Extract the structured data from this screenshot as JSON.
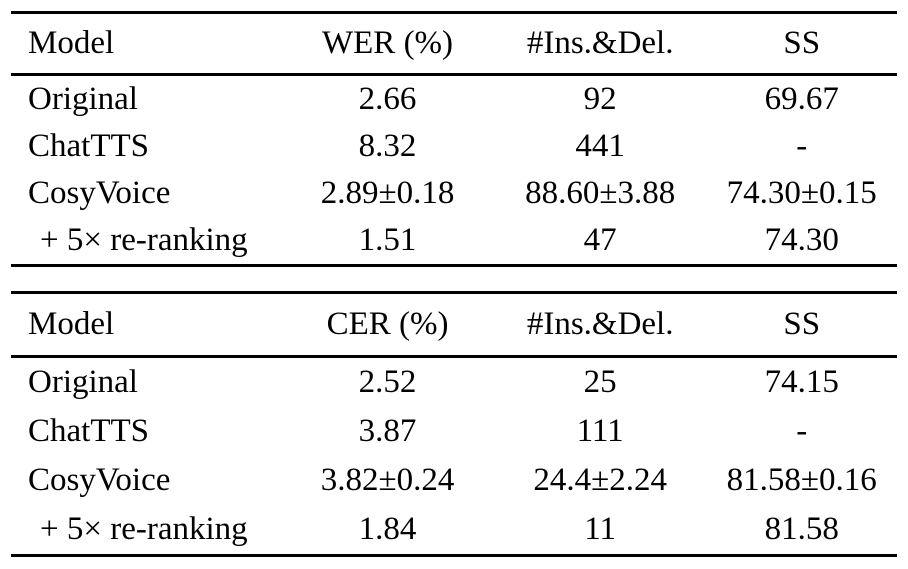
{
  "colors": {
    "background": "#ffffff",
    "text": "#000000",
    "rule": "#000000"
  },
  "tables": [
    {
      "columns": [
        "Model",
        "WER (%)",
        "#Ins.&Del.",
        "SS"
      ],
      "rows": [
        {
          "model": "Original",
          "metric": "2.66",
          "ins_del": "92",
          "ss": "69.67"
        },
        {
          "model": "ChatTTS",
          "metric": "8.32",
          "ins_del": "441",
          "ss": "-"
        },
        {
          "model": "CosyVoice",
          "metric": "2.89±0.18",
          "ins_del": "88.60±3.88",
          "ss": "74.30±0.15"
        },
        {
          "model": "+ 5× re-ranking",
          "metric": "1.51",
          "ins_del": "47",
          "ss": "74.30"
        }
      ]
    },
    {
      "columns": [
        "Model",
        "CER (%)",
        "#Ins.&Del.",
        "SS"
      ],
      "rows": [
        {
          "model": "Original",
          "metric": "2.52",
          "ins_del": "25",
          "ss": "74.15"
        },
        {
          "model": "ChatTTS",
          "metric": "3.87",
          "ins_del": "111",
          "ss": "-"
        },
        {
          "model": "CosyVoice",
          "metric": "3.82±0.24",
          "ins_del": "24.4±2.24",
          "ss": "81.58±0.16"
        },
        {
          "model": "+ 5× re-ranking",
          "metric": "1.84",
          "ins_del": "11",
          "ss": "81.58"
        }
      ]
    }
  ]
}
